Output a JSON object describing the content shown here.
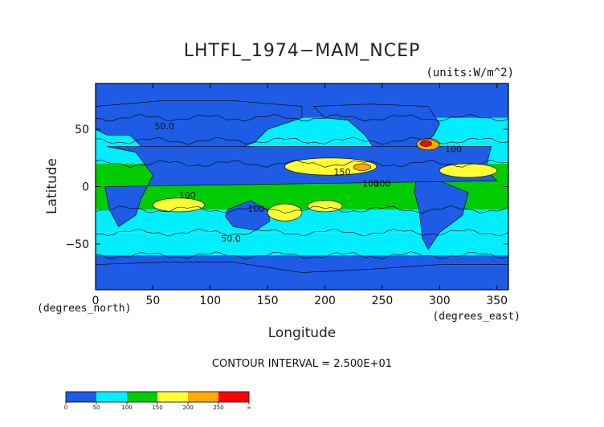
{
  "chart_data": {
    "type": "heatmap",
    "title": "LHTFL_1974−MAM_NCEP",
    "units_label": "(units:W/m^2)",
    "xlabel": "Longitude",
    "ylabel": "Latitude",
    "x_sublabel": "(degrees_east)",
    "y_sublabel": "(degrees_north)",
    "xlim": [
      0,
      360
    ],
    "ylim": [
      -90,
      90
    ],
    "x_ticks": [
      {
        "value": 0,
        "label": "0"
      },
      {
        "value": 50,
        "label": "50"
      },
      {
        "value": 100,
        "label": "100"
      },
      {
        "value": 150,
        "label": "150"
      },
      {
        "value": 200,
        "label": "200"
      },
      {
        "value": 250,
        "label": "250"
      },
      {
        "value": 300,
        "label": "300"
      },
      {
        "value": 350,
        "label": "350"
      }
    ],
    "y_ticks": [
      {
        "value": 50,
        "label": "50"
      },
      {
        "value": 0,
        "label": "0"
      },
      {
        "value": -50,
        "label": "−50"
      }
    ],
    "contour_interval_text": "CONTOUR INTERVAL = 2.500E+01",
    "contour_labels": [
      {
        "lon": 60,
        "lat": 50,
        "text": "50.0"
      },
      {
        "lon": 140,
        "lat": -22,
        "text": "100"
      },
      {
        "lon": 80,
        "lat": -10,
        "text": "100"
      },
      {
        "lon": 215,
        "lat": 10,
        "text": "150"
      },
      {
        "lon": 250,
        "lat": 0,
        "text": "100"
      },
      {
        "lon": 312,
        "lat": 30,
        "text": "100"
      },
      {
        "lon": 118,
        "lat": -48,
        "text": "50.0"
      },
      {
        "lon": 240,
        "lat": 0,
        "text": "100"
      }
    ],
    "colorbar": {
      "boundaries": [
        0,
        25,
        50,
        75,
        100,
        125,
        150,
        175,
        200,
        225,
        250,
        275,
        300
      ],
      "labels": [
        "0",
        "50",
        "100",
        "150",
        "200",
        "250",
        "∞"
      ],
      "colors": [
        "#1e5ce6",
        "#1e5ce6",
        "#00eeff",
        "#00eeff",
        "#00cc00",
        "#00cc00",
        "#ffff33",
        "#ffff33",
        "#ffaa00",
        "#ffaa00",
        "#ff0000",
        "#ff0000"
      ],
      "label_color": "#111111"
    },
    "field_bands": [
      {
        "lat_min": 60,
        "lat_max": 90,
        "level": 0
      },
      {
        "lat_min": 40,
        "lat_max": 60,
        "level": 1
      },
      {
        "lat_min": 20,
        "lat_max": 40,
        "level": 2
      },
      {
        "lat_min": -20,
        "lat_max": 20,
        "level": 3
      },
      {
        "lat_min": -40,
        "lat_max": -20,
        "level": 2
      },
      {
        "lat_min": -60,
        "lat_max": -40,
        "level": 1
      },
      {
        "lat_min": -90,
        "lat_max": -60,
        "level": 0
      }
    ],
    "high_flux_regions": [
      {
        "lon_min": 165,
        "lon_max": 245,
        "lat_min": 10,
        "lat_max": 25,
        "level": 4
      },
      {
        "lon_min": 225,
        "lon_max": 240,
        "lat_min": 14,
        "lat_max": 20,
        "level": 5
      },
      {
        "lon_min": 300,
        "lon_max": 350,
        "lat_min": 8,
        "lat_max": 20,
        "level": 4
      },
      {
        "lon_min": 50,
        "lon_max": 95,
        "lat_min": -22,
        "lat_max": -10,
        "level": 4
      },
      {
        "lon_min": 150,
        "lon_max": 180,
        "lat_min": -30,
        "lat_max": -15,
        "level": 4
      },
      {
        "lon_min": 185,
        "lon_max": 215,
        "lat_min": -22,
        "lat_max": -12,
        "level": 4
      },
      {
        "lon_min": 280,
        "lon_max": 300,
        "lat_min": 32,
        "lat_max": 42,
        "level": 5
      },
      {
        "lon_min": 283,
        "lon_max": 293,
        "lat_min": 35,
        "lat_max": 40,
        "level": 6
      }
    ],
    "land_masks": [
      {
        "name": "north-america",
        "points": [
          [
            190,
            70
          ],
          [
            240,
            72
          ],
          [
            290,
            70
          ],
          [
            300,
            55
          ],
          [
            295,
            45
          ],
          [
            280,
            30
          ],
          [
            265,
            25
          ],
          [
            255,
            20
          ],
          [
            245,
            30
          ],
          [
            235,
            45
          ],
          [
            220,
            58
          ],
          [
            200,
            60
          ]
        ]
      },
      {
        "name": "south-america",
        "points": [
          [
            280,
            10
          ],
          [
            300,
            5
          ],
          [
            325,
            -5
          ],
          [
            320,
            -25
          ],
          [
            300,
            -40
          ],
          [
            290,
            -55
          ],
          [
            285,
            -45
          ],
          [
            282,
            -20
          ],
          [
            278,
            -5
          ]
        ]
      },
      {
        "name": "eurasia",
        "points": [
          [
            0,
            70
          ],
          [
            60,
            75
          ],
          [
            120,
            75
          ],
          [
            180,
            70
          ],
          [
            180,
            60
          ],
          [
            150,
            50
          ],
          [
            140,
            40
          ],
          [
            120,
            30
          ],
          [
            100,
            20
          ],
          [
            80,
            25
          ],
          [
            60,
            25
          ],
          [
            40,
            35
          ],
          [
            30,
            45
          ],
          [
            10,
            45
          ],
          [
            0,
            50
          ]
        ]
      },
      {
        "name": "africa",
        "points": [
          [
            345,
            35
          ],
          [
            10,
            35
          ],
          [
            35,
            30
          ],
          [
            50,
            10
          ],
          [
            40,
            -10
          ],
          [
            35,
            -25
          ],
          [
            20,
            -35
          ],
          [
            12,
            -20
          ],
          [
            8,
            0
          ],
          [
            350,
            5
          ],
          [
            340,
            15
          ]
        ]
      },
      {
        "name": "australia",
        "points": [
          [
            115,
            -20
          ],
          [
            135,
            -12
          ],
          [
            150,
            -20
          ],
          [
            152,
            -30
          ],
          [
            140,
            -38
          ],
          [
            120,
            -35
          ],
          [
            113,
            -26
          ]
        ]
      },
      {
        "name": "antarctica",
        "points": [
          [
            0,
            -68
          ],
          [
            60,
            -66
          ],
          [
            120,
            -66
          ],
          [
            180,
            -75
          ],
          [
            240,
            -72
          ],
          [
            300,
            -68
          ],
          [
            360,
            -68
          ],
          [
            360,
            -90
          ],
          [
            0,
            -90
          ]
        ]
      }
    ]
  }
}
